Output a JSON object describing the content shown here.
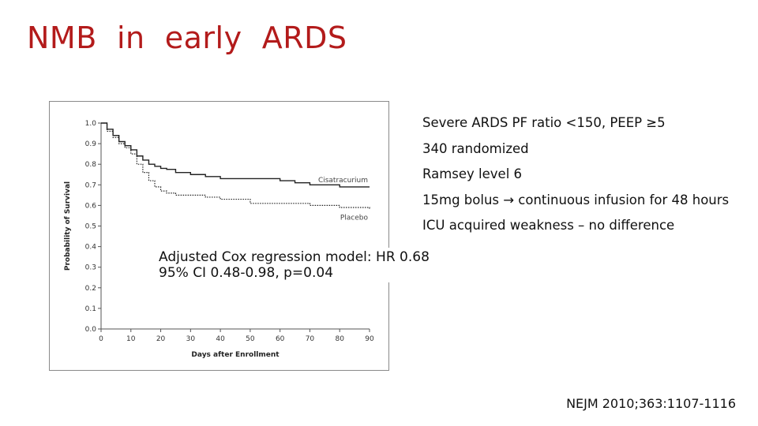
{
  "slide": {
    "title": "NMB  in  early  ARDS",
    "bullets": [
      "Severe ARDS PF ratio <150, PEEP ≥5",
      "340 randomized",
      "Ramsey level 6",
      "15mg bolus → continuous infusion for 48 hours",
      "ICU acquired weakness – no difference"
    ],
    "hr_box": {
      "line1": "Adjusted Cox regression model: HR 0.68",
      "line2": "95% CI 0.48-0.98, p=0.04"
    },
    "citation": "NEJM 2010;363:1107-1116",
    "colors": {
      "title": "#b31b1b",
      "series": "#222222"
    }
  },
  "chart_data": {
    "type": "line",
    "xlabel": "Days after Enrollment",
    "ylabel": "Probability of Survival",
    "xlim": [
      0,
      90
    ],
    "ylim": [
      0,
      1.0
    ],
    "x_ticks": [
      "0",
      "10",
      "20",
      "30",
      "40",
      "50",
      "60",
      "70",
      "80",
      "90"
    ],
    "y_ticks": [
      "0.0",
      "0.1",
      "0.2",
      "0.3",
      "0.4",
      "0.5",
      "0.6",
      "0.7",
      "0.8",
      "0.9",
      "1.0"
    ],
    "grid": false,
    "legend": "inline labels at right end of curves",
    "series": [
      {
        "name": "Cisatracurium",
        "style": "solid",
        "x": [
          0,
          2,
          4,
          6,
          8,
          10,
          12,
          14,
          16,
          18,
          20,
          22,
          25,
          30,
          35,
          40,
          50,
          60,
          65,
          70,
          75,
          80,
          85,
          90
        ],
        "y": [
          1.0,
          0.97,
          0.94,
          0.91,
          0.89,
          0.87,
          0.84,
          0.82,
          0.8,
          0.79,
          0.78,
          0.775,
          0.76,
          0.75,
          0.74,
          0.73,
          0.73,
          0.72,
          0.71,
          0.7,
          0.7,
          0.69,
          0.69,
          0.69
        ]
      },
      {
        "name": "Placebo",
        "style": "dotted",
        "x": [
          0,
          2,
          4,
          6,
          8,
          10,
          12,
          14,
          16,
          18,
          20,
          22,
          25,
          30,
          35,
          40,
          50,
          60,
          70,
          80,
          90
        ],
        "y": [
          1.0,
          0.96,
          0.93,
          0.9,
          0.88,
          0.85,
          0.8,
          0.76,
          0.72,
          0.69,
          0.67,
          0.66,
          0.65,
          0.65,
          0.64,
          0.63,
          0.61,
          0.61,
          0.6,
          0.59,
          0.58
        ]
      }
    ]
  }
}
